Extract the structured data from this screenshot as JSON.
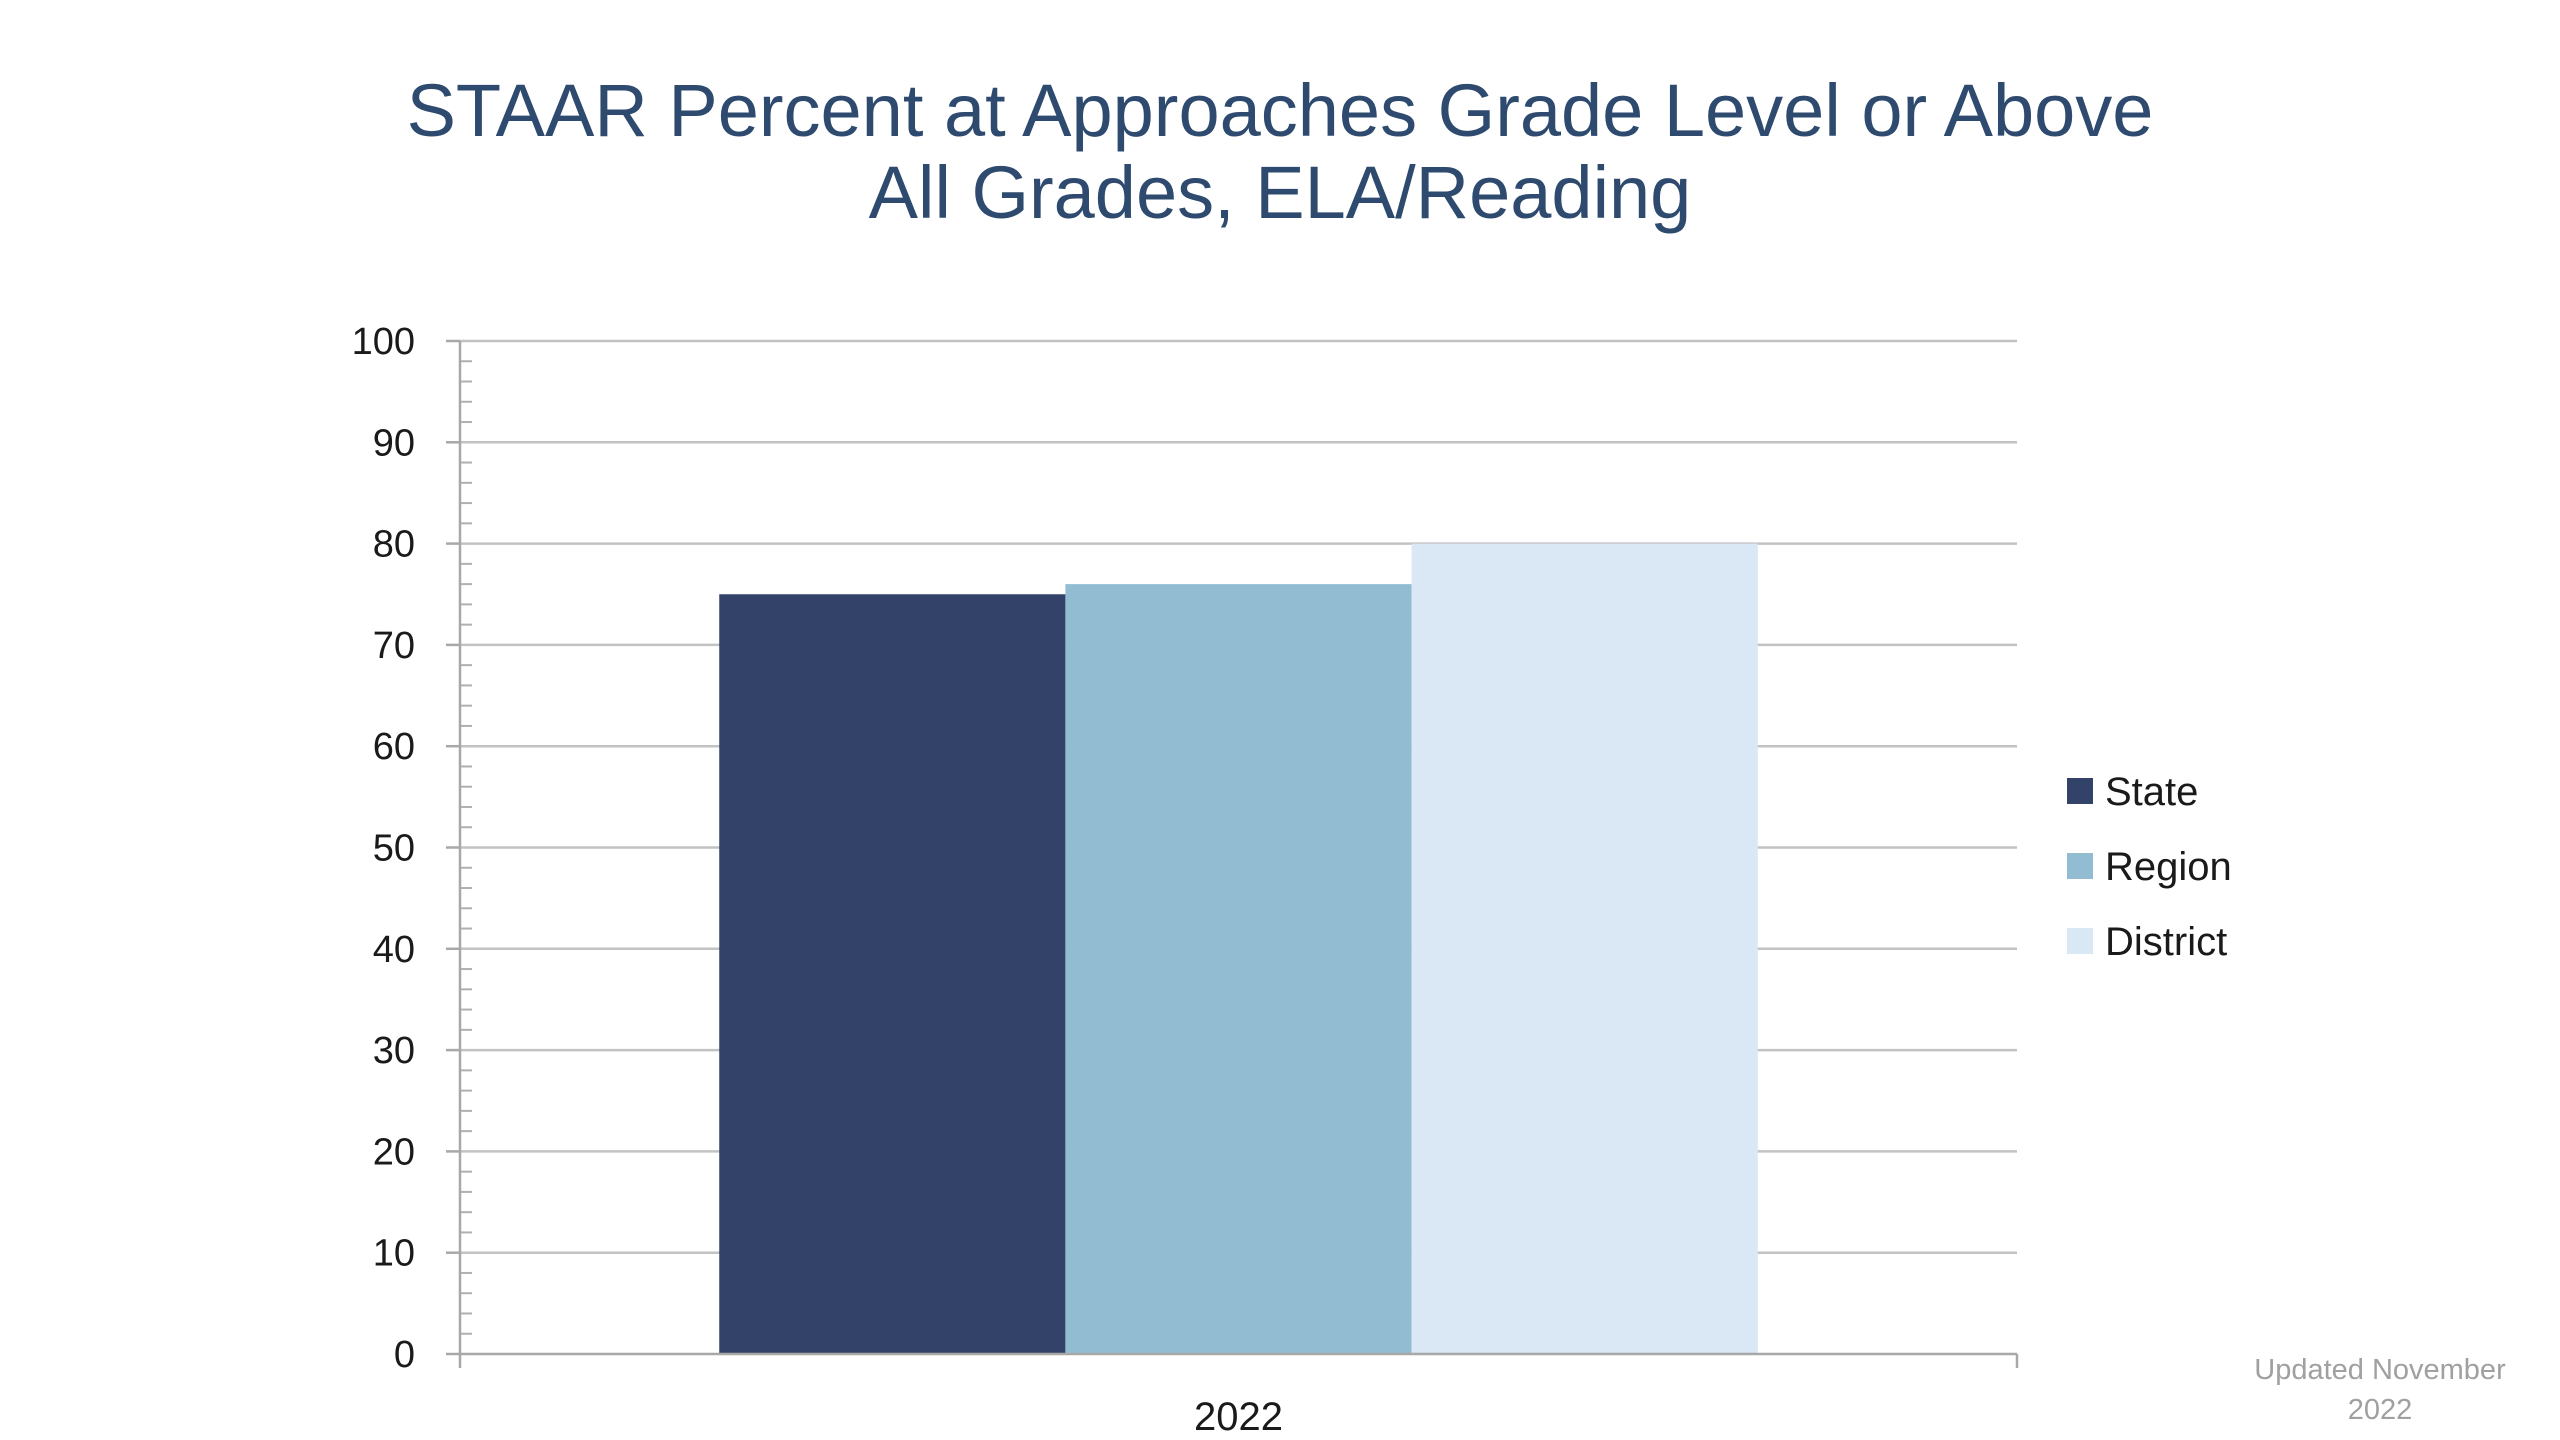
{
  "chart_data": {
    "type": "bar",
    "title_lines": [
      "STAAR Percent at Approaches Grade Level or Above",
      "All Grades, ELA/Reading"
    ],
    "categories": [
      "2022"
    ],
    "series": [
      {
        "name": "State",
        "values": [
          75
        ],
        "color": "#324268"
      },
      {
        "name": "Region",
        "values": [
          76
        ],
        "color": "#92bcd2"
      },
      {
        "name": "District",
        "values": [
          80
        ],
        "color": "#dae7f4"
      }
    ],
    "ylim": [
      0,
      100
    ],
    "yticks": [
      "0",
      "10",
      "20",
      "30",
      "40",
      "50",
      "60",
      "70",
      "80",
      "90",
      "100"
    ],
    "grid": true,
    "legend_position": "right"
  },
  "footnote": {
    "line1": "Updated November",
    "line2": "2022"
  }
}
